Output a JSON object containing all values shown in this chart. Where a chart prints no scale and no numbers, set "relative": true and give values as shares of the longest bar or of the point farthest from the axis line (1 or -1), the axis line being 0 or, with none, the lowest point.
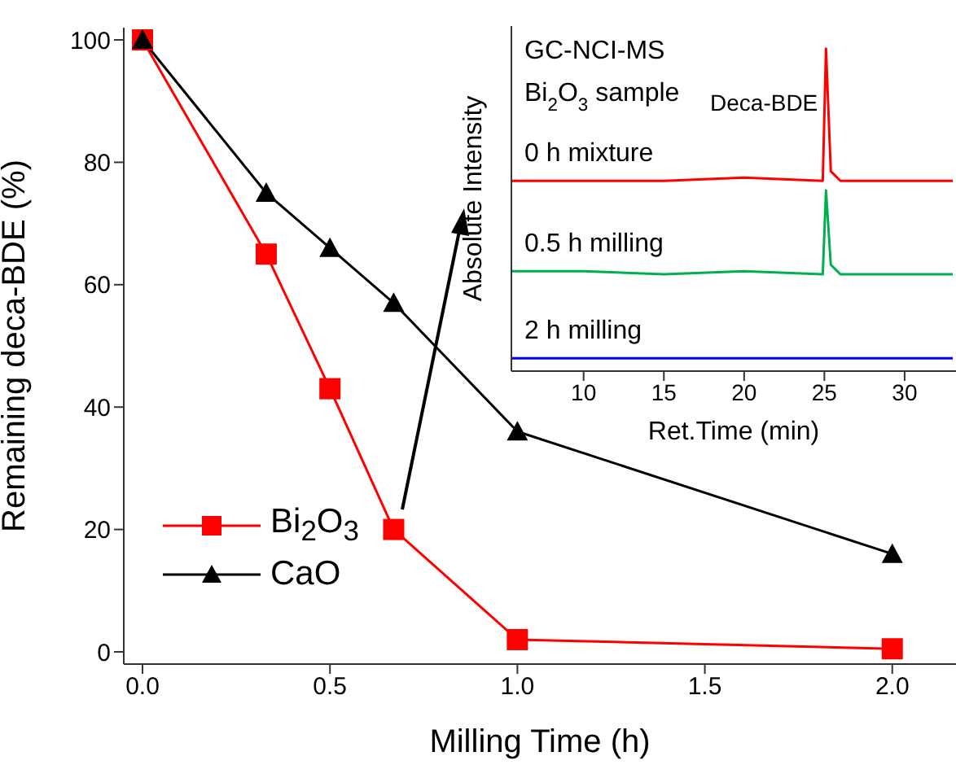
{
  "chart_data": [
    {
      "type": "line",
      "xlabel": "Milling Time (h)",
      "ylabel": "Remaining deca-BDE (%)",
      "xlim": [
        -0.05,
        2.17
      ],
      "ylim": [
        -2,
        102
      ],
      "xticks": [
        {
          "value": 0,
          "label": "0.0"
        },
        {
          "value": 0.5,
          "label": "0.5"
        },
        {
          "value": 1,
          "label": "1.0"
        },
        {
          "value": 1.5,
          "label": "1.5"
        },
        {
          "value": 2,
          "label": "2.0"
        }
      ],
      "yticks": [
        0,
        20,
        40,
        60,
        80,
        100
      ],
      "x": [
        0,
        0.33,
        0.5,
        0.67,
        1,
        2
      ],
      "series": [
        {
          "name": "Bi$_{2}$O$_{3}$",
          "color": "#ff0000",
          "marker": "square",
          "values": [
            100,
            65,
            43,
            20,
            2,
            0.5
          ]
        },
        {
          "name": "CaO",
          "color": "#000000",
          "marker": "triangle",
          "values": [
            100,
            75,
            66,
            57,
            36,
            16
          ]
        }
      ],
      "legend": "bottom left"
    },
    {
      "type": "line",
      "relative": true,
      "xlabel": "Ret.Time (min)",
      "ylabel": "Absolute Intensity",
      "xlim": [
        5.5,
        33.2
      ],
      "xticks": [
        10,
        15,
        20,
        25,
        30
      ],
      "x": [
        5.5,
        10,
        15,
        20,
        24.9,
        25.1,
        25.4,
        26,
        30,
        33
      ],
      "series": [
        {
          "name": "0 h mixture",
          "color": "#ff0000",
          "marker": "none",
          "values": [
            0.59,
            0.59,
            0.59,
            0.6,
            0.59,
            1,
            0.62,
            0.59,
            0.59,
            0.59
          ]
        },
        {
          "name": "0.5 h milling",
          "color": "#00b050",
          "marker": "none",
          "values": [
            0.31,
            0.31,
            0.3,
            0.31,
            0.3,
            0.56,
            0.33,
            0.3,
            0.3,
            0.3
          ]
        },
        {
          "name": "2 h milling",
          "color": "#0000ff",
          "marker": "none",
          "values": [
            0.04,
            0.04,
            0.04,
            0.04,
            0.04,
            0.04,
            0.04,
            0.04,
            0.04,
            0.04
          ]
        }
      ],
      "annotations": [
        "GC-NCI-MS",
        "Bi$_{2}$O$_{3}$ sample",
        {
          "text": "Deca-BDE",
          "x": 25.1,
          "y": 1
        }
      ]
    }
  ]
}
